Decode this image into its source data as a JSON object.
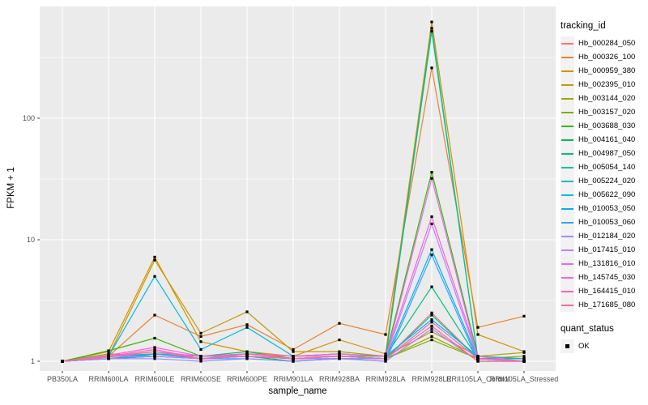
{
  "legend": {
    "tracking_title": "tracking_id",
    "quant_title": "quant_status",
    "quant_items": [
      {
        "label": "OK"
      }
    ]
  },
  "chart_data": {
    "type": "line",
    "x_type": "categorical",
    "y_scale": "log10",
    "title": "",
    "xlabel": "sample_name",
    "ylabel": "FPKM + 1",
    "y_ticks": [
      1,
      10,
      100
    ],
    "y_minor_ticks": [
      3.162,
      31.62,
      316.2
    ],
    "ylim": [
      0.95,
      830
    ],
    "grid": true,
    "legend_position": "right",
    "panel_bg": "#EBEBEB",
    "grid_major_color": "#FFFFFF",
    "grid_minor_color": "#F5F5F5",
    "tick_color": "#333333",
    "tick_label_color": "#4D4D4D",
    "point_color": "#000000",
    "point_shape": "square",
    "categories": [
      "PB350LA",
      "RRIM600LA",
      "RRIM600LE",
      "RRIM600SE",
      "RRIM600PE",
      "RRIM901LA",
      "RRIM928BA",
      "RRIM928LA",
      "RRIM928LE",
      "RRII105LA_Control",
      "RRII105LA_Stressed"
    ],
    "series": [
      {
        "name": "Hb_000284_050",
        "color": "#F8766D",
        "values": [
          1,
          1.05,
          1.1,
          1.05,
          1.1,
          1.05,
          1.1,
          1.05,
          2.5,
          1.05,
          1
        ]
      },
      {
        "name": "Hb_000326_100",
        "color": "#EA8331",
        "values": [
          1,
          1.1,
          2.4,
          1.6,
          2.0,
          1.25,
          2.05,
          1.66,
          260,
          1.9,
          2.35
        ]
      },
      {
        "name": "Hb_000959_380",
        "color": "#D89000",
        "values": [
          1,
          1.2,
          7.2,
          1.45,
          1.2,
          1.1,
          1.5,
          1.15,
          620,
          1.66,
          1.2
        ]
      },
      {
        "name": "Hb_002395_010",
        "color": "#C09B00",
        "values": [
          1,
          1.1,
          6.8,
          1.7,
          2.55,
          1.2,
          1.2,
          1.1,
          1.75,
          1.1,
          1.18
        ]
      },
      {
        "name": "Hb_003144_020",
        "color": "#A3A500",
        "values": [
          1,
          1.1,
          1.15,
          1.1,
          1.15,
          1.05,
          1.1,
          1.05,
          1.6,
          1.05,
          1.1
        ]
      },
      {
        "name": "Hb_003157_020",
        "color": "#7CAE00",
        "values": [
          1,
          1.15,
          1.1,
          1.05,
          1.1,
          1.05,
          1.05,
          1.05,
          1.5,
          1.05,
          1
        ]
      },
      {
        "name": "Hb_003688_030",
        "color": "#39B600",
        "values": [
          1,
          1.22,
          1.55,
          1.1,
          1.15,
          1.1,
          1.15,
          1.1,
          36,
          1.1,
          1.05
        ]
      },
      {
        "name": "Hb_004161_040",
        "color": "#00BB4E",
        "values": [
          1,
          1.05,
          1.1,
          1.05,
          1.1,
          1,
          1.05,
          1.05,
          550,
          1.05,
          1
        ]
      },
      {
        "name": "Hb_004987_050",
        "color": "#00BF7D",
        "values": [
          1,
          1.05,
          1.15,
          1.1,
          1.2,
          1.05,
          1.1,
          1.1,
          4.1,
          1.05,
          1.05
        ]
      },
      {
        "name": "Hb_005054_140",
        "color": "#00C1A3",
        "values": [
          1,
          1.05,
          1.1,
          1.05,
          1.1,
          1.05,
          1.05,
          1.05,
          520,
          1.05,
          1
        ]
      },
      {
        "name": "Hb_005224_020",
        "color": "#00BFC4",
        "values": [
          1,
          1.1,
          1.15,
          1.1,
          1.1,
          1.05,
          1.1,
          1.05,
          2.4,
          1.05,
          1
        ]
      },
      {
        "name": "Hb_005622_090",
        "color": "#00BAE0",
        "values": [
          1,
          1.1,
          5.0,
          1.25,
          1.9,
          1.1,
          1.15,
          1.1,
          2.2,
          1.1,
          1.05
        ]
      },
      {
        "name": "Hb_010053_050",
        "color": "#00B0F6",
        "values": [
          1,
          1.05,
          1.15,
          1.05,
          1.1,
          1.05,
          1.05,
          1.05,
          8.3,
          1.05,
          1
        ]
      },
      {
        "name": "Hb_010053_060",
        "color": "#35A2FF",
        "values": [
          1,
          1.05,
          1.1,
          1.05,
          1.05,
          1,
          1.05,
          1,
          7.5,
          1,
          1
        ]
      },
      {
        "name": "Hb_012184_020",
        "color": "#9590FF",
        "values": [
          1,
          1.05,
          1.05,
          1,
          1.05,
          1,
          1.05,
          1,
          1.85,
          1,
          1
        ]
      },
      {
        "name": "Hb_017415_010",
        "color": "#C77CFF",
        "values": [
          1,
          1.1,
          1.1,
          1.05,
          1.1,
          1.05,
          1.05,
          1.05,
          13.5,
          1.05,
          1
        ]
      },
      {
        "name": "Hb_131816_010",
        "color": "#E76BF3",
        "values": [
          1,
          1.1,
          1.2,
          1.1,
          1.15,
          1.1,
          1.1,
          1.05,
          32,
          1.05,
          1
        ]
      },
      {
        "name": "Hb_145745_030",
        "color": "#FA62DB",
        "values": [
          1,
          1.12,
          1.3,
          1.1,
          1.15,
          1.1,
          1.15,
          1.1,
          15.5,
          1.1,
          1
        ]
      },
      {
        "name": "Hb_164415_010",
        "color": "#FF62BC",
        "values": [
          1,
          1.1,
          1.25,
          1.05,
          1.1,
          1.05,
          1.1,
          1.05,
          2.1,
          1.05,
          1
        ]
      },
      {
        "name": "Hb_171685_080",
        "color": "#FF6A98",
        "values": [
          1,
          1.08,
          1.2,
          1.05,
          1.15,
          1.05,
          1.1,
          1.05,
          1.95,
          1,
          1
        ]
      }
    ]
  }
}
